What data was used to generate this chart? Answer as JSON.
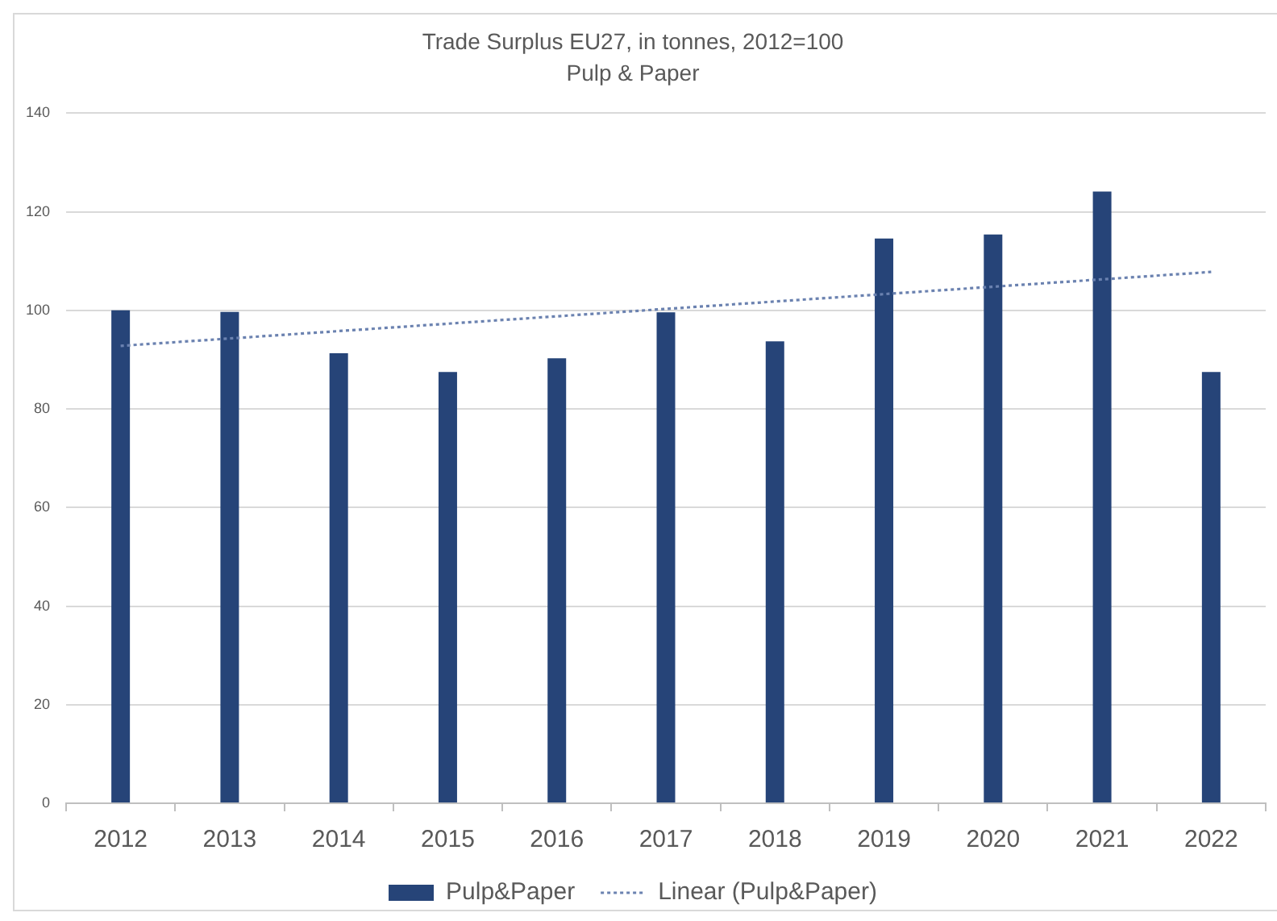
{
  "chart_data": {
    "type": "bar",
    "title": "Trade Surplus EU27, in tonnes, 2012=100",
    "subtitle": "Pulp & Paper",
    "categories": [
      "2012",
      "2013",
      "2014",
      "2015",
      "2016",
      "2017",
      "2018",
      "2019",
      "2020",
      "2021",
      "2022"
    ],
    "series": [
      {
        "name": "Pulp&Paper",
        "color": "#264478",
        "values": [
          100,
          99.7,
          91.3,
          87.5,
          90.3,
          99.6,
          93.7,
          114.6,
          115.4,
          124.1,
          87.5
        ]
      },
      {
        "name": "Linear (Pulp&Paper)",
        "type": "line",
        "color": "#6b82b0",
        "values": [
          92.8,
          94.3,
          95.8,
          97.3,
          98.8,
          100.3,
          101.8,
          103.3,
          104.8,
          106.3,
          107.8
        ],
        "line_style": "dotted",
        "marker": "none"
      }
    ],
    "ylim": [
      0,
      140
    ],
    "yticks": [
      0,
      20,
      40,
      60,
      80,
      100,
      120,
      140
    ],
    "grid": "y",
    "legend": "bottom"
  }
}
